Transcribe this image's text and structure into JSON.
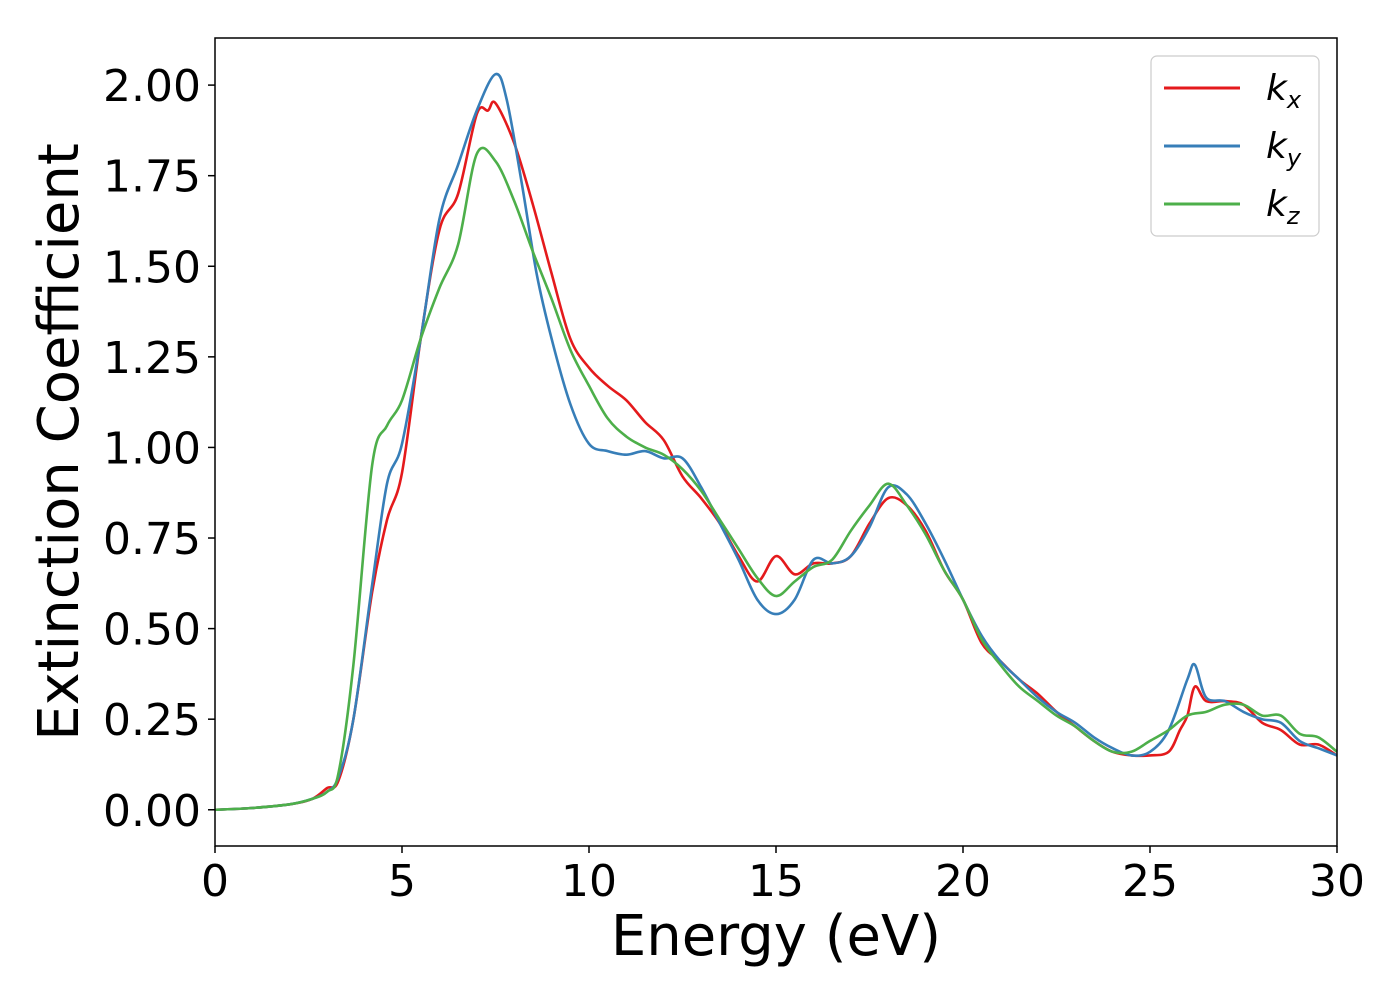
{
  "chart_data": {
    "type": "line",
    "title": "",
    "xlabel": "Energy (eV)",
    "ylabel": "Extinction Coefficient",
    "xlim": [
      0,
      30
    ],
    "ylim": [
      -0.1,
      2.13
    ],
    "xticks": [
      0,
      5,
      10,
      15,
      20,
      25,
      30
    ],
    "xtick_labels": [
      "0",
      "5",
      "10",
      "15",
      "20",
      "25",
      "30"
    ],
    "yticks": [
      0,
      0.25,
      0.5,
      0.75,
      1.0,
      1.25,
      1.5,
      1.75,
      2.0
    ],
    "ytick_labels": [
      "0.00",
      "0.25",
      "0.50",
      "0.75",
      "1.00",
      "1.25",
      "1.50",
      "1.75",
      "2.00"
    ],
    "grid": false,
    "legend_position": "top-right",
    "series": [
      {
        "name": "k",
        "sub": "x",
        "color": "#e41a1c",
        "points": [
          [
            0,
            0
          ],
          [
            1,
            0.005
          ],
          [
            2,
            0.015
          ],
          [
            2.6,
            0.03
          ],
          [
            3,
            0.06
          ],
          [
            3.3,
            0.08
          ],
          [
            3.7,
            0.25
          ],
          [
            4.2,
            0.6
          ],
          [
            4.6,
            0.8
          ],
          [
            5,
            0.93
          ],
          [
            5.5,
            1.3
          ],
          [
            6,
            1.6
          ],
          [
            6.5,
            1.7
          ],
          [
            7,
            1.92
          ],
          [
            7.3,
            1.93
          ],
          [
            7.5,
            1.95
          ],
          [
            8,
            1.84
          ],
          [
            8.5,
            1.67
          ],
          [
            9,
            1.48
          ],
          [
            9.5,
            1.3
          ],
          [
            10,
            1.22
          ],
          [
            10.5,
            1.17
          ],
          [
            11,
            1.13
          ],
          [
            11.5,
            1.07
          ],
          [
            12,
            1.02
          ],
          [
            12.5,
            0.92
          ],
          [
            13,
            0.86
          ],
          [
            13.5,
            0.79
          ],
          [
            14,
            0.7
          ],
          [
            14.5,
            0.63
          ],
          [
            15,
            0.7
          ],
          [
            15.5,
            0.65
          ],
          [
            16,
            0.68
          ],
          [
            16.5,
            0.68
          ],
          [
            17,
            0.7
          ],
          [
            17.5,
            0.79
          ],
          [
            18,
            0.86
          ],
          [
            18.5,
            0.84
          ],
          [
            19,
            0.77
          ],
          [
            19.5,
            0.66
          ],
          [
            20,
            0.58
          ],
          [
            20.5,
            0.46
          ],
          [
            21,
            0.41
          ],
          [
            21.5,
            0.36
          ],
          [
            22,
            0.32
          ],
          [
            22.5,
            0.27
          ],
          [
            23,
            0.23
          ],
          [
            23.5,
            0.19
          ],
          [
            24,
            0.16
          ],
          [
            24.5,
            0.15
          ],
          [
            25,
            0.15
          ],
          [
            25.5,
            0.16
          ],
          [
            25.8,
            0.22
          ],
          [
            26,
            0.26
          ],
          [
            26.2,
            0.34
          ],
          [
            26.5,
            0.3
          ],
          [
            27,
            0.3
          ],
          [
            27.5,
            0.29
          ],
          [
            28,
            0.24
          ],
          [
            28.5,
            0.22
          ],
          [
            29,
            0.18
          ],
          [
            29.5,
            0.18
          ],
          [
            30,
            0.15
          ]
        ]
      },
      {
        "name": "k",
        "sub": "y",
        "color": "#377eb8",
        "points": [
          [
            0,
            0
          ],
          [
            1,
            0.005
          ],
          [
            2,
            0.015
          ],
          [
            2.6,
            0.03
          ],
          [
            3,
            0.05
          ],
          [
            3.3,
            0.09
          ],
          [
            3.7,
            0.25
          ],
          [
            4.2,
            0.62
          ],
          [
            4.6,
            0.9
          ],
          [
            5,
            1.01
          ],
          [
            5.5,
            1.3
          ],
          [
            6,
            1.63
          ],
          [
            6.5,
            1.78
          ],
          [
            7,
            1.93
          ],
          [
            7.5,
            2.03
          ],
          [
            7.8,
            1.96
          ],
          [
            8.2,
            1.73
          ],
          [
            8.6,
            1.48
          ],
          [
            9,
            1.3
          ],
          [
            9.5,
            1.12
          ],
          [
            10,
            1.01
          ],
          [
            10.5,
            0.99
          ],
          [
            11,
            0.98
          ],
          [
            11.5,
            0.99
          ],
          [
            12,
            0.97
          ],
          [
            12.5,
            0.97
          ],
          [
            13,
            0.89
          ],
          [
            13.5,
            0.79
          ],
          [
            14,
            0.69
          ],
          [
            14.5,
            0.58
          ],
          [
            15,
            0.54
          ],
          [
            15.5,
            0.58
          ],
          [
            16,
            0.69
          ],
          [
            16.5,
            0.68
          ],
          [
            17,
            0.7
          ],
          [
            17.5,
            0.78
          ],
          [
            18,
            0.89
          ],
          [
            18.5,
            0.87
          ],
          [
            19,
            0.79
          ],
          [
            19.5,
            0.69
          ],
          [
            20,
            0.58
          ],
          [
            20.5,
            0.48
          ],
          [
            21,
            0.41
          ],
          [
            21.5,
            0.36
          ],
          [
            22,
            0.31
          ],
          [
            22.5,
            0.27
          ],
          [
            23,
            0.24
          ],
          [
            23.5,
            0.2
          ],
          [
            24,
            0.17
          ],
          [
            24.5,
            0.15
          ],
          [
            25,
            0.16
          ],
          [
            25.5,
            0.22
          ],
          [
            26,
            0.36
          ],
          [
            26.2,
            0.4
          ],
          [
            26.5,
            0.31
          ],
          [
            27,
            0.3
          ],
          [
            27.5,
            0.27
          ],
          [
            28,
            0.25
          ],
          [
            28.5,
            0.24
          ],
          [
            29,
            0.19
          ],
          [
            29.5,
            0.17
          ],
          [
            30,
            0.15
          ]
        ]
      },
      {
        "name": "k",
        "sub": "z",
        "color": "#4daf4a",
        "points": [
          [
            0,
            0
          ],
          [
            1,
            0.005
          ],
          [
            2,
            0.015
          ],
          [
            2.6,
            0.03
          ],
          [
            3,
            0.05
          ],
          [
            3.3,
            0.1
          ],
          [
            3.7,
            0.4
          ],
          [
            4.2,
            0.95
          ],
          [
            4.6,
            1.06
          ],
          [
            5,
            1.13
          ],
          [
            5.5,
            1.3
          ],
          [
            6,
            1.44
          ],
          [
            6.5,
            1.56
          ],
          [
            7,
            1.81
          ],
          [
            7.5,
            1.79
          ],
          [
            8,
            1.68
          ],
          [
            8.5,
            1.54
          ],
          [
            9,
            1.41
          ],
          [
            9.5,
            1.27
          ],
          [
            10,
            1.17
          ],
          [
            10.5,
            1.08
          ],
          [
            11,
            1.03
          ],
          [
            11.5,
            1.0
          ],
          [
            12,
            0.98
          ],
          [
            12.5,
            0.94
          ],
          [
            13,
            0.88
          ],
          [
            13.5,
            0.8
          ],
          [
            14,
            0.72
          ],
          [
            14.5,
            0.64
          ],
          [
            15,
            0.59
          ],
          [
            15.5,
            0.63
          ],
          [
            16,
            0.67
          ],
          [
            16.5,
            0.69
          ],
          [
            17,
            0.77
          ],
          [
            17.5,
            0.84
          ],
          [
            18,
            0.9
          ],
          [
            18.5,
            0.84
          ],
          [
            19,
            0.76
          ],
          [
            19.5,
            0.66
          ],
          [
            20,
            0.58
          ],
          [
            20.5,
            0.47
          ],
          [
            21,
            0.4
          ],
          [
            21.5,
            0.34
          ],
          [
            22,
            0.3
          ],
          [
            22.5,
            0.26
          ],
          [
            23,
            0.23
          ],
          [
            23.5,
            0.19
          ],
          [
            24,
            0.16
          ],
          [
            24.5,
            0.16
          ],
          [
            25,
            0.19
          ],
          [
            25.5,
            0.22
          ],
          [
            26,
            0.26
          ],
          [
            26.5,
            0.27
          ],
          [
            27,
            0.29
          ],
          [
            27.5,
            0.29
          ],
          [
            28,
            0.26
          ],
          [
            28.5,
            0.26
          ],
          [
            29,
            0.21
          ],
          [
            29.5,
            0.2
          ],
          [
            30,
            0.16
          ]
        ]
      }
    ]
  }
}
